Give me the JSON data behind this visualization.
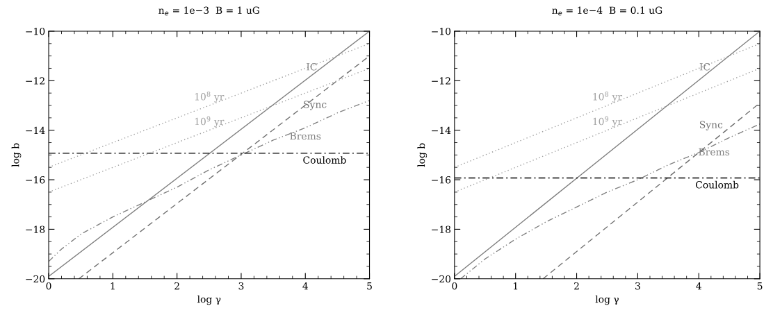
{
  "chart_data": [
    {
      "type": "line",
      "title": "n$_{e}$ = 1e−3  B = 1 uG",
      "xlabel": "log γ",
      "ylabel": "log b",
      "xlim": [
        0,
        5
      ],
      "ylim": [
        -20,
        -10
      ],
      "xticks": [
        0,
        1,
        2,
        3,
        4,
        5
      ],
      "yticks": [
        -20,
        -18,
        -16,
        -14,
        -12,
        -10
      ],
      "grid": false,
      "legend": false,
      "marker": "none",
      "series": [
        {
          "name": "IC",
          "x": [
            0,
            5
          ],
          "values": [
            -19.9,
            -10
          ],
          "color": "#808080",
          "line_style": "solid"
        },
        {
          "name": "Sync",
          "x": [
            0.47,
            5
          ],
          "values": [
            -20,
            -11
          ],
          "color": "#707070",
          "line_style": "dashed"
        },
        {
          "name": "Brems",
          "x": [
            0,
            0.2,
            0.5,
            1,
            1.5,
            2,
            2.5,
            3,
            3.5,
            4,
            4.5,
            5
          ],
          "values": [
            -19.3,
            -18.8,
            -18.2,
            -17.5,
            -16.9,
            -16.3,
            -15.6,
            -15.0,
            -14.4,
            -13.9,
            -13.3,
            -12.8
          ],
          "color": "#808080",
          "line_style": "dashdotdot"
        },
        {
          "name": "10$^{8}$ yr",
          "x": [
            0,
            5
          ],
          "values": [
            -15.5,
            -10.5
          ],
          "color": "#a0a0a0",
          "line_style": "dotted"
        },
        {
          "name": "10$^{9}$ yr",
          "x": [
            0,
            5
          ],
          "values": [
            -16.5,
            -11.5
          ],
          "color": "#a0a0a0",
          "line_style": "dotted"
        }
      ],
      "ref_lines": [
        {
          "axis": "y",
          "value": -14.93,
          "label": "Coulomb",
          "color": "#000000",
          "line_style": "dashdot"
        }
      ]
    },
    {
      "type": "line",
      "title": "n$_{e}$ = 1e−4  B = 0.1 uG",
      "xlabel": "log γ",
      "ylabel": "log b",
      "xlim": [
        0,
        5
      ],
      "ylim": [
        -20,
        -10
      ],
      "xticks": [
        0,
        1,
        2,
        3,
        4,
        5
      ],
      "yticks": [
        -20,
        -18,
        -16,
        -14,
        -12,
        -10
      ],
      "grid": false,
      "legend": false,
      "marker": "none",
      "series": [
        {
          "name": "IC",
          "x": [
            0,
            5
          ],
          "values": [
            -19.9,
            -10
          ],
          "color": "#808080",
          "line_style": "solid"
        },
        {
          "name": "Sync",
          "x": [
            1.45,
            5
          ],
          "values": [
            -20,
            -12.9
          ],
          "color": "#707070",
          "line_style": "dashed"
        },
        {
          "name": "Brems",
          "x": [
            0.1,
            0.5,
            1,
            1.5,
            2,
            2.5,
            3,
            3.5,
            4,
            4.5,
            5
          ],
          "values": [
            -20,
            -19.2,
            -18.4,
            -17.7,
            -17.1,
            -16.5,
            -16.0,
            -15.4,
            -14.9,
            -14.3,
            -13.75
          ],
          "color": "#808080",
          "line_style": "dashdotdot"
        },
        {
          "name": "10$^{8}$ yr",
          "x": [
            0,
            5
          ],
          "values": [
            -15.5,
            -10.5
          ],
          "color": "#a0a0a0",
          "line_style": "dotted"
        },
        {
          "name": "10$^{9}$ yr",
          "x": [
            0,
            5
          ],
          "values": [
            -16.5,
            -11.5
          ],
          "color": "#a0a0a0",
          "line_style": "dotted"
        }
      ],
      "ref_lines": [
        {
          "axis": "y",
          "value": -15.93,
          "label": "Coulomb",
          "color": "#000000",
          "line_style": "dashdot"
        }
      ]
    }
  ]
}
